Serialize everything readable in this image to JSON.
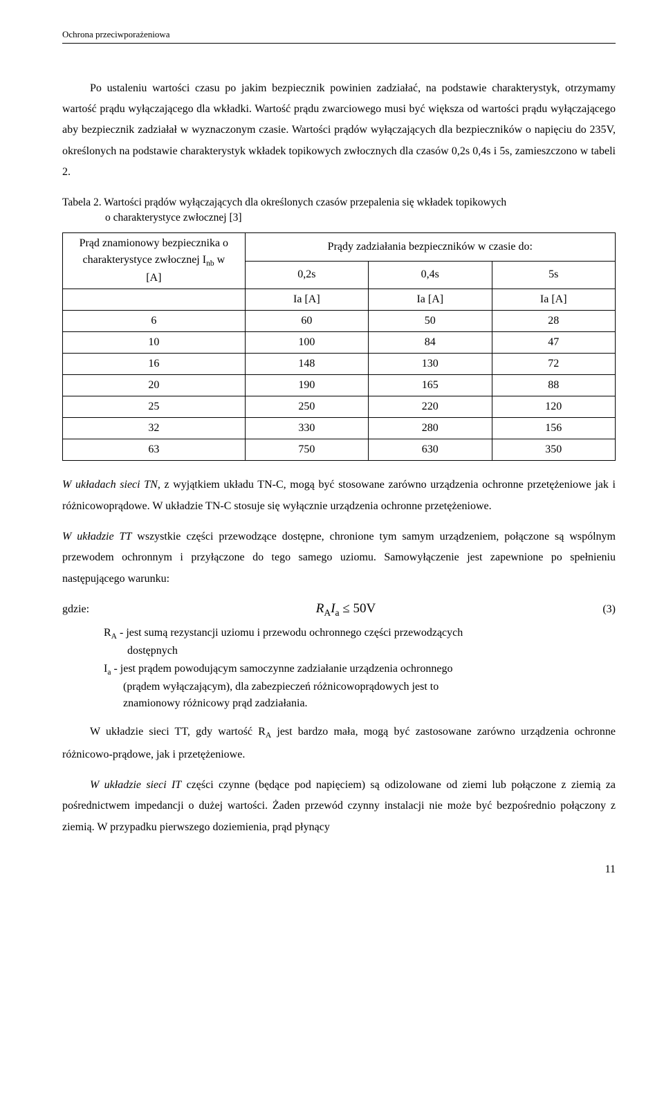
{
  "header": "Ochrona przeciwporażeniowa",
  "para1": "Po ustaleniu wartości czasu po jakim bezpiecznik powinien zadziałać, na podstawie charakterystyk, otrzymamy wartość prądu wyłączającego dla wkładki. Wartość prądu zwarciowego musi być większa od wartości prądu wyłączającego aby bezpiecznik zadziałał w wyznaczonym czasie. Wartości prądów wyłączających dla bezpieczników o napięciu do 235V, określonych na podstawie charakterystyk wkładek topikowych zwłocznych dla czasów 0,2s 0,4s i 5s, zamieszczono w tabeli 2.",
  "tableCaptionL1": "Tabela 2. Wartości prądów wyłączających dla określonych czasów przepalenia się wkładek topikowych",
  "tableCaptionL2": "o charakterystyce zwłocznej [3]",
  "table": {
    "colHeadLeftL1": "Prąd znamionowy bezpiecznika o",
    "colHeadLeftL2": "charakterystyce zwłocznej I",
    "colHeadLeftSub": "nb",
    "colHeadLeftL2b": " w",
    "colHeadLeftL3": "[A]",
    "colHeadRight": "Prądy zadziałania bezpieczników w czasie do:",
    "t1": "0,2s",
    "t2": "0,4s",
    "t3": "5s",
    "unit": "Ia [A]",
    "rows": [
      [
        "6",
        "60",
        "50",
        "28"
      ],
      [
        "10",
        "100",
        "84",
        "47"
      ],
      [
        "16",
        "148",
        "130",
        "72"
      ],
      [
        "20",
        "190",
        "165",
        "88"
      ],
      [
        "25",
        "250",
        "220",
        "120"
      ],
      [
        "32",
        "330",
        "280",
        "156"
      ],
      [
        "63",
        "750",
        "630",
        "350"
      ]
    ]
  },
  "para2a": "W układach sieci TN",
  "para2b": ", z wyjątkiem układu TN-C, mogą być stosowane zarówno urządzenia ochronne przetężeniowe jak i różnicowoprądowe. W układzie TN-C stosuje się wyłącznie urządzenia ochronne przetężeniowe.",
  "para3a": "W układzie TT",
  "para3b": " wszystkie części przewodzące dostępne, chronione tym samym urządzeniem, połączone są wspólnym przewodem ochronnym i przyłączone do tego samego uziomu. Samowyłączenie jest zapewnione po spełnieniu następującego warunku:",
  "gdzie": "gdzie:",
  "eqLeft": "R",
  "eqSubA": "A",
  "eqI": "I",
  "eqSuba": "a",
  "eqOp": " ≤ 50",
  "eqUnit": "V",
  "eqNum": "(3)",
  "defRA_l1": "R",
  "defRA_sub": "A",
  "defRA_l1b": " - jest sumą rezystancji uziomu i przewodu ochronnego części przewodzących",
  "defRA_l2": "dostępnych",
  "defIa_l1": "I",
  "defIa_sub": "a",
  "defIa_l1b": " - jest prądem powodującym samoczynne zadziałanie urządzenia ochronnego",
  "defIa_l2": "(prądem wyłączającym), dla zabezpieczeń różnicowoprądowych jest to",
  "defIa_l3": "znamionowy różnicowy prąd zadziałania.",
  "para4_pre": "W układzie sieci TT, gdy wartość R",
  "para4_sub": "A",
  "para4_post": " jest bardzo mała, mogą być zastosowane zarówno urządzenia ochronne różnicowo-prądowe, jak i przetężeniowe.",
  "para5a": "W układzie sieci IT",
  "para5b": " części czynne (będące pod napięciem) są odizolowane od ziemi lub połączone z ziemią za pośrednictwem impedancji o dużej wartości. Żaden przewód czynny instalacji nie może być bezpośrednio połączony z ziemią. W przypadku pierwszego doziemienia, prąd płynący",
  "pageNumber": "11"
}
